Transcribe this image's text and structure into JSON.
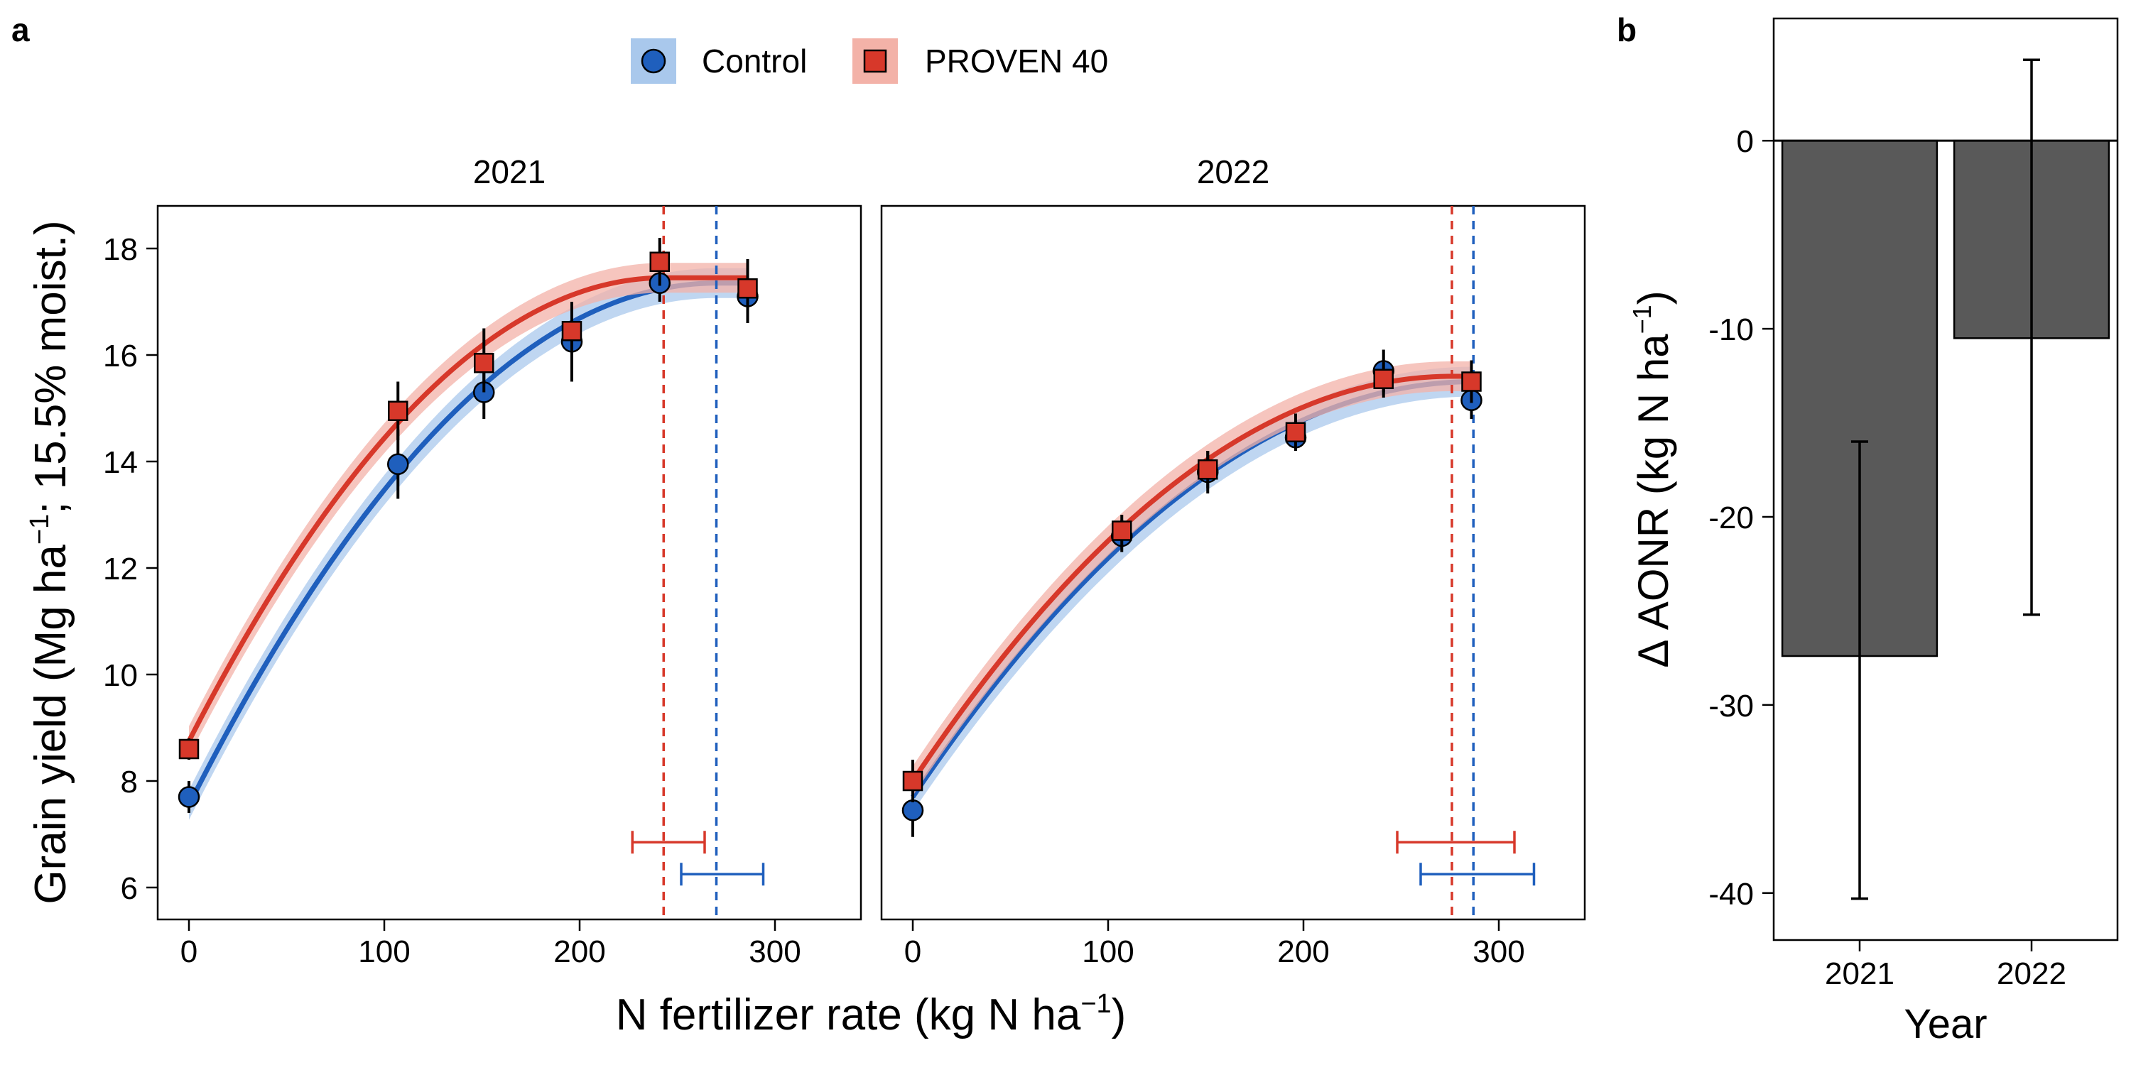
{
  "figure": {
    "panel_a_label": "a",
    "panel_b_label": "b",
    "legend": [
      {
        "label": "Control",
        "color": "#1f5fbd",
        "band": "#a9c8ec",
        "marker": "circle"
      },
      {
        "label": "PROVEN 40",
        "color": "#d7382a",
        "band": "#f3b2a8",
        "marker": "square"
      }
    ],
    "shared_xlabel": "N fertilizer rate (kg N ha",
    "shared_xlabel_sup": "−1",
    "shared_xlabel_end": ")"
  },
  "chart_data": [
    {
      "type": "scatter",
      "title": "2021",
      "xlabel": "N fertilizer rate (kg N ha−1)",
      "ylabel": "Grain yield (Mg ha−1; 15.5% moist.)",
      "ylabel_parts": [
        "Grain yield (Mg ha",
        "−1",
        "; 15.5% moist.)"
      ],
      "xlim": [
        -16,
        344
      ],
      "ylim": [
        5.4,
        18.8
      ],
      "xticks": [
        0,
        100,
        200,
        300
      ],
      "yticks": [
        6,
        8,
        10,
        12,
        14,
        16,
        18
      ],
      "series": [
        {
          "name": "Control",
          "points": [
            {
              "x": 0,
              "y": 7.7,
              "lo": 7.4,
              "hi": 8.0
            },
            {
              "x": 107,
              "y": 13.95,
              "lo": 13.3,
              "hi": 14.6
            },
            {
              "x": 151,
              "y": 15.3,
              "lo": 14.8,
              "hi": 15.8
            },
            {
              "x": 196,
              "y": 16.25,
              "lo": 15.5,
              "hi": 16.9
            },
            {
              "x": 241,
              "y": 17.35,
              "lo": 17.0,
              "hi": 17.7
            },
            {
              "x": 286,
              "y": 17.1,
              "lo": 16.6,
              "hi": 17.6
            }
          ],
          "fit": {
            "intercept": 7.55,
            "plateau_x": 270,
            "plateau_y": 17.35
          },
          "aonr": 270,
          "aonr_ci": [
            252,
            294
          ],
          "aonr_ci_y": 6.25
        },
        {
          "name": "PROVEN 40",
          "points": [
            {
              "x": 0,
              "y": 8.6,
              "lo": 8.4,
              "hi": 8.8
            },
            {
              "x": 107,
              "y": 14.95,
              "lo": 14.4,
              "hi": 15.5
            },
            {
              "x": 151,
              "y": 15.85,
              "lo": 15.3,
              "hi": 16.5
            },
            {
              "x": 196,
              "y": 16.45,
              "lo": 16.0,
              "hi": 17.0
            },
            {
              "x": 241,
              "y": 17.75,
              "lo": 17.3,
              "hi": 18.2
            },
            {
              "x": 286,
              "y": 17.25,
              "lo": 16.8,
              "hi": 17.8
            }
          ],
          "fit": {
            "intercept": 8.75,
            "plateau_x": 243,
            "plateau_y": 17.45
          },
          "aonr": 243,
          "aonr_ci": [
            227,
            264
          ],
          "aonr_ci_y": 6.85
        }
      ]
    },
    {
      "type": "scatter",
      "title": "2022",
      "xlabel": "N fertilizer rate (kg N ha−1)",
      "xlim": [
        -16,
        344
      ],
      "ylim": [
        5.4,
        18.8
      ],
      "xticks": [
        0,
        100,
        200,
        300
      ],
      "yticks": [
        6,
        8,
        10,
        12,
        14,
        16,
        18
      ],
      "series": [
        {
          "name": "Control",
          "points": [
            {
              "x": 0,
              "y": 7.45,
              "lo": 6.95,
              "hi": 7.9
            },
            {
              "x": 107,
              "y": 12.6,
              "lo": 12.3,
              "hi": 12.9
            },
            {
              "x": 151,
              "y": 13.8,
              "lo": 13.4,
              "hi": 14.2
            },
            {
              "x": 196,
              "y": 14.45,
              "lo": 14.2,
              "hi": 14.7
            },
            {
              "x": 241,
              "y": 15.7,
              "lo": 15.3,
              "hi": 16.1
            },
            {
              "x": 286,
              "y": 15.15,
              "lo": 14.8,
              "hi": 15.5
            }
          ],
          "fit": {
            "intercept": 7.7,
            "plateau_x": 287,
            "plateau_y": 15.5
          },
          "aonr": 287,
          "aonr_ci": [
            260,
            318
          ],
          "aonr_ci_y": 6.25
        },
        {
          "name": "PROVEN 40",
          "points": [
            {
              "x": 0,
              "y": 8.0,
              "lo": 7.6,
              "hi": 8.4
            },
            {
              "x": 107,
              "y": 12.7,
              "lo": 12.4,
              "hi": 13.0
            },
            {
              "x": 151,
              "y": 13.85,
              "lo": 13.5,
              "hi": 14.2
            },
            {
              "x": 196,
              "y": 14.55,
              "lo": 14.2,
              "hi": 14.9
            },
            {
              "x": 241,
              "y": 15.55,
              "lo": 15.2,
              "hi": 15.9
            },
            {
              "x": 286,
              "y": 15.5,
              "lo": 15.1,
              "hi": 15.9
            }
          ],
          "fit": {
            "intercept": 8.0,
            "plateau_x": 276,
            "plateau_y": 15.6
          },
          "aonr": 276,
          "aonr_ci": [
            248,
            308
          ],
          "aonr_ci_y": 6.85
        }
      ]
    },
    {
      "type": "bar",
      "xlabel": "Year",
      "ylabel": "Δ AONR (kg N ha−1)",
      "ylabel_parts": [
        "Δ AONR (kg N ha",
        "−1",
        ")"
      ],
      "categories": [
        "2021",
        "2022"
      ],
      "values": [
        -27.4,
        -10.5
      ],
      "error_low": [
        -40.3,
        -25.2
      ],
      "error_high": [
        -16.0,
        4.3
      ],
      "ylim": [
        -42.5,
        6.5
      ],
      "yticks": [
        0,
        -10,
        -20,
        -30,
        -40
      ],
      "bar_color": "#595959"
    }
  ]
}
